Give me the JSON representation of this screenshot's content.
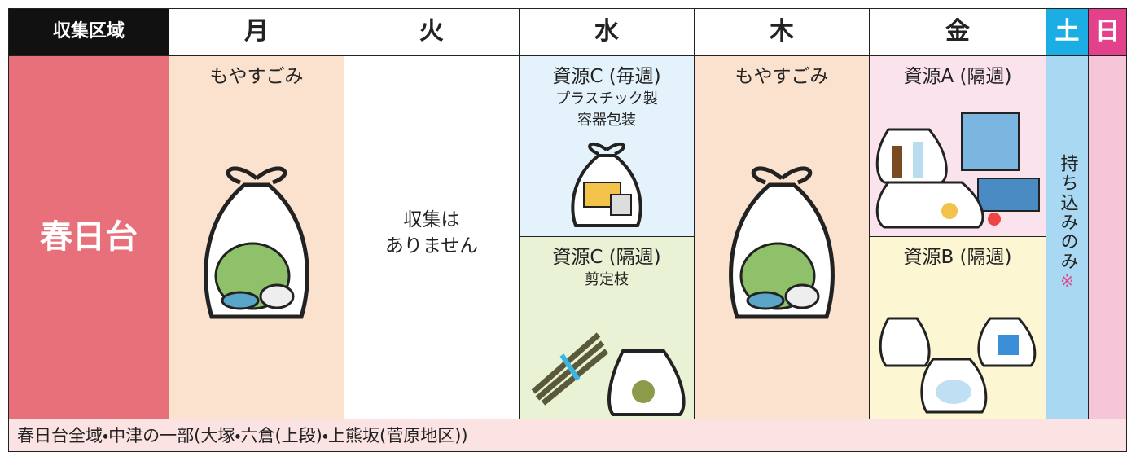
{
  "header": {
    "area_label": "収集区域",
    "days": [
      "月",
      "火",
      "水",
      "木",
      "金",
      "土",
      "日"
    ]
  },
  "row": {
    "area": "春日台",
    "monday": "もやすごみ",
    "tuesday": [
      "収集は",
      "ありません"
    ],
    "wednesday_top": {
      "title": "資源C (毎週)",
      "lines": [
        "プラスチック製",
        "容器包装"
      ]
    },
    "wednesday_bottom": {
      "title": "資源C (隔週)",
      "lines": [
        "剪定枝"
      ]
    },
    "thursday": "もやすごみ",
    "friday_top": {
      "title": "資源A (隔週)"
    },
    "friday_bottom": {
      "title": "資源B (隔週)"
    },
    "saturday": {
      "text": "持ち込みのみ",
      "mark": "※"
    }
  },
  "footer": "春日台全域・中津の一部(大塚・六倉(上段)・上熊坂(菅原地区))"
}
